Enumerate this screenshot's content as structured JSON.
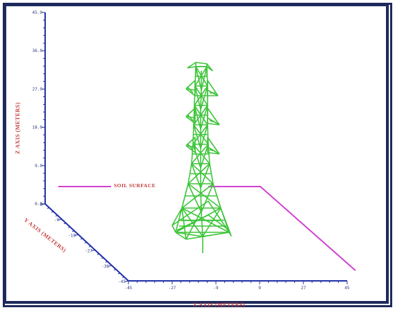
{
  "chart_data": {
    "type": "3d-wireframe",
    "z_axis": {
      "title": "Z AXIS (METERS)",
      "tick_labels": [
        "0.0",
        "9.0",
        "18.0",
        "27.0",
        "36.0",
        "45.0"
      ]
    },
    "y_axis": {
      "title": "Y AXIS (METERS)",
      "tick_labels": [
        "-45",
        "-36",
        "-27",
        "-18",
        "-9",
        "0"
      ]
    },
    "x_axis": {
      "title": "X AXIS (METERS)",
      "tick_labels": [
        "-45",
        "-27",
        "-9",
        "9",
        "27",
        "45"
      ]
    },
    "annotation": "SOIL SURFACE",
    "colors": {
      "axes": "#1f2fa8",
      "tower": "#3ec43a",
      "soil_line": "#d23fd2",
      "labels": "#c43a3a"
    }
  }
}
